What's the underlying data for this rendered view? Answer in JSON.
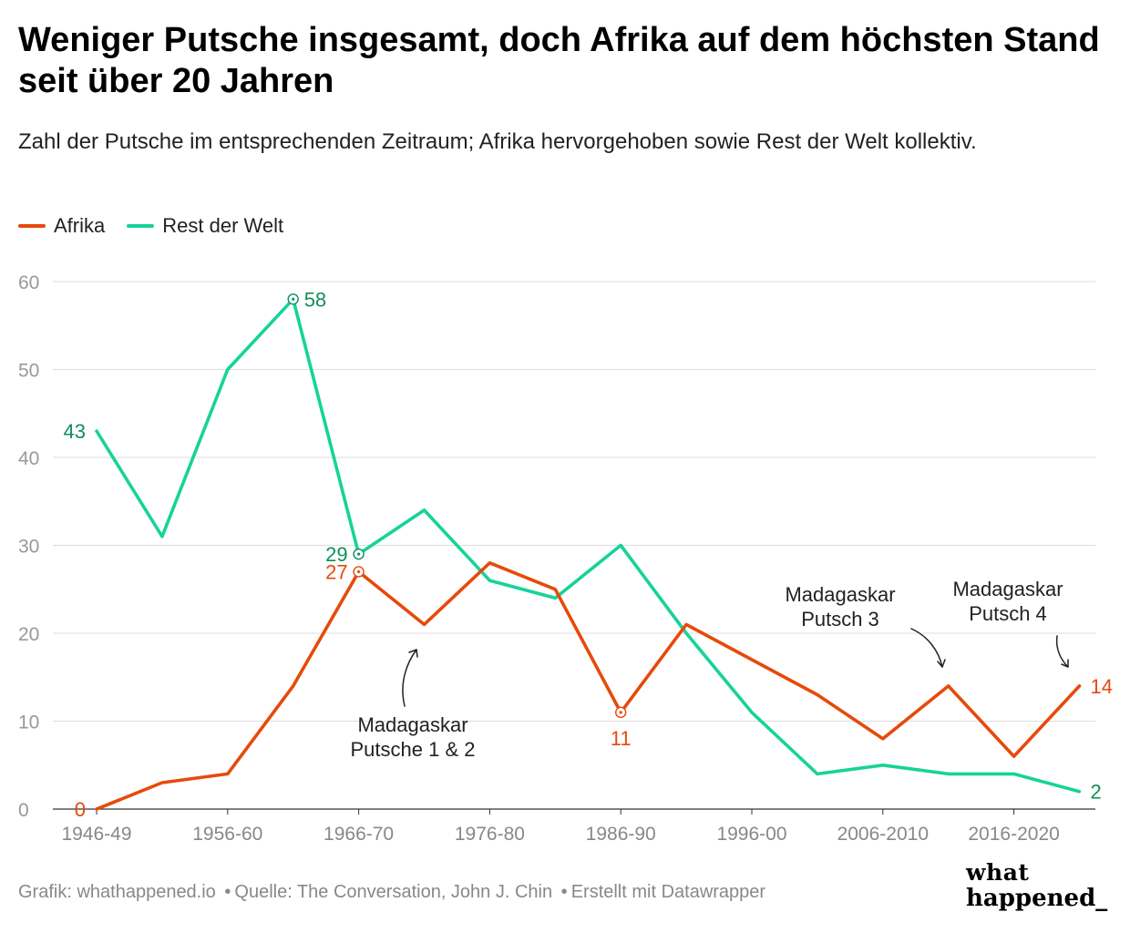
{
  "title": "Weniger Putsche insgesamt, doch Afrika auf dem höchsten Stand seit über 20 Jahren",
  "subtitle": "Zahl der Putsche im entsprechenden Zeitraum; Afrika hervorgehoben sowie Rest der Welt kollektiv.",
  "footer": {
    "grafik": "Grafik: whathappened.io",
    "quelle": "Quelle: The Conversation, John J. Chin",
    "erstellt": "Erstellt mit Datawrapper",
    "sep": "•"
  },
  "brand": {
    "line1": "what",
    "line2": "happened_"
  },
  "colors": {
    "afrika": "#e64a0a",
    "rest": "#16d39a",
    "rest_label": "#0f8f5a",
    "grid": "#dddddd",
    "axis_text": "#999999"
  },
  "chart_data": {
    "type": "line",
    "x": [
      0,
      1,
      2,
      3,
      4,
      5,
      6,
      7,
      8,
      9,
      10,
      11,
      12,
      13,
      14,
      15
    ],
    "x_tick_positions": [
      0,
      2,
      4,
      6,
      8,
      10,
      12,
      14
    ],
    "x_tick_labels": [
      "1946-49",
      "1956-60",
      "1966-70",
      "1976-80",
      "1986-90",
      "1996-00",
      "2006-2010",
      "2016-2020"
    ],
    "ylim": [
      0,
      60
    ],
    "y_ticks": [
      0,
      10,
      20,
      30,
      40,
      50,
      60
    ],
    "grid": true,
    "legend": "top-left",
    "series": [
      {
        "name": "Afrika",
        "color": "#e64a0a",
        "values": [
          0,
          3,
          4,
          14,
          27,
          21,
          28,
          25,
          11,
          21,
          17,
          13,
          8,
          14,
          6,
          14
        ]
      },
      {
        "name": "Rest der Welt",
        "color": "#16d39a",
        "values": [
          43,
          31,
          50,
          58,
          29,
          34,
          26,
          24,
          30,
          20,
          11,
          4,
          5,
          4,
          4,
          2
        ]
      }
    ],
    "data_labels": [
      {
        "series": 0,
        "index": 0,
        "text": "0",
        "side": "left"
      },
      {
        "series": 0,
        "index": 4,
        "text": "27",
        "side": "left",
        "marker": true
      },
      {
        "series": 0,
        "index": 8,
        "text": "11",
        "side": "below",
        "marker": true
      },
      {
        "series": 0,
        "index": 15,
        "text": "14",
        "side": "right"
      },
      {
        "series": 1,
        "index": 0,
        "text": "43",
        "side": "left"
      },
      {
        "series": 1,
        "index": 3,
        "text": "58",
        "side": "right",
        "marker": true
      },
      {
        "series": 1,
        "index": 4,
        "text": "29",
        "side": "left",
        "marker": true
      },
      {
        "series": 1,
        "index": 15,
        "text": "2",
        "side": "right"
      }
    ],
    "annotations": [
      {
        "name": "madagaskar-putsche-1-2",
        "lines": [
          "Madagaskar",
          "Putsche 1 & 2"
        ]
      },
      {
        "name": "madagaskar-putsch-3",
        "lines": [
          "Madagaskar",
          "Putsch 3"
        ]
      },
      {
        "name": "madagaskar-putsch-4",
        "lines": [
          "Madagaskar",
          "Putsch 4"
        ]
      }
    ]
  }
}
